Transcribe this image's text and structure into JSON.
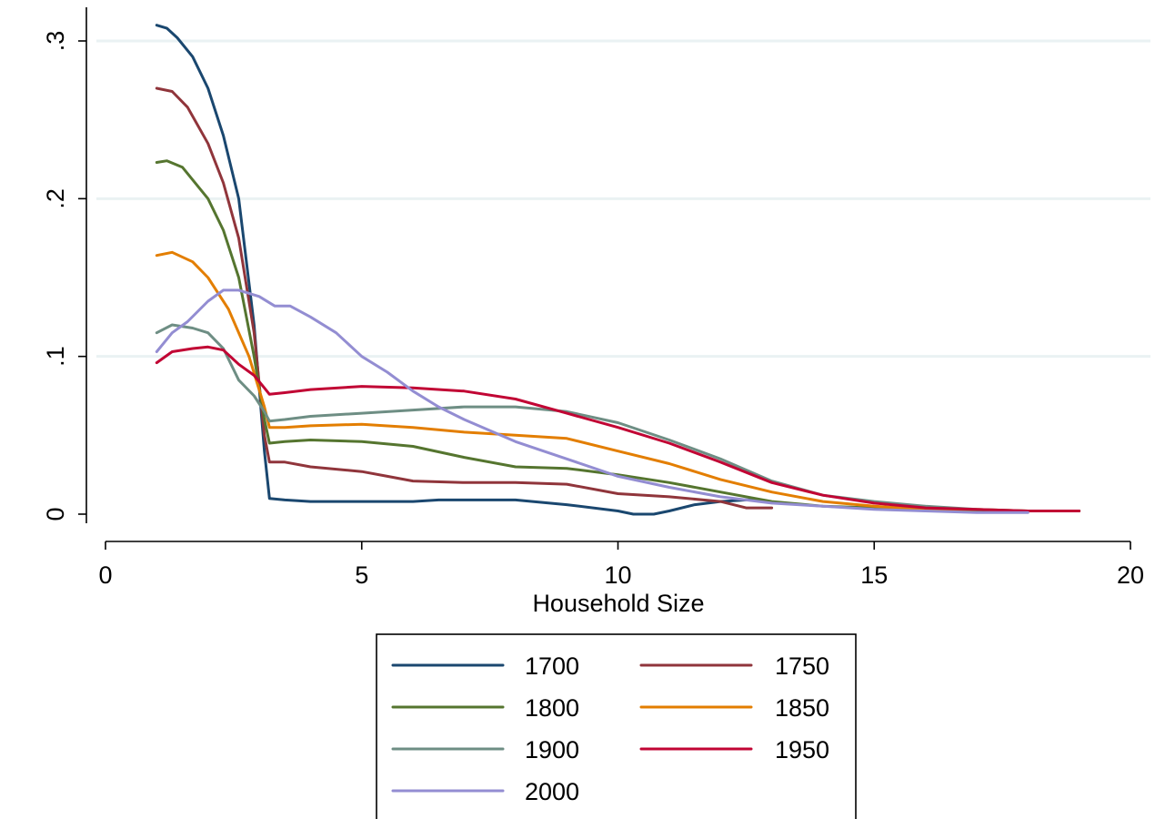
{
  "chart_data": {
    "type": "line",
    "title": "",
    "xlabel": "Household Size",
    "ylabel": "",
    "xlim": [
      0,
      20
    ],
    "ylim": [
      0,
      0.3
    ],
    "x_ticks": [
      {
        "value": 0,
        "label": "0"
      },
      {
        "value": 5,
        "label": "5"
      },
      {
        "value": 10,
        "label": "10"
      },
      {
        "value": 15,
        "label": "15"
      },
      {
        "value": 20,
        "label": "20"
      }
    ],
    "y_ticks": [
      {
        "value": 0,
        "label": "0"
      },
      {
        "value": 0.1,
        "label": ".1"
      },
      {
        "value": 0.2,
        "label": ".2"
      },
      {
        "value": 0.3,
        "label": ".3"
      }
    ],
    "grid": "horizontal",
    "legend": "bottom",
    "series": [
      {
        "name": "1700",
        "color": "#1a476f",
        "points": [
          [
            1,
            0.31
          ],
          [
            1.2,
            0.308
          ],
          [
            1.4,
            0.302
          ],
          [
            1.7,
            0.29
          ],
          [
            2,
            0.27
          ],
          [
            2.3,
            0.24
          ],
          [
            2.6,
            0.2
          ],
          [
            2.9,
            0.12
          ],
          [
            3.1,
            0.04
          ],
          [
            3.2,
            0.01
          ],
          [
            3.5,
            0.009
          ],
          [
            4,
            0.008
          ],
          [
            5,
            0.008
          ],
          [
            6,
            0.008
          ],
          [
            6.5,
            0.009
          ],
          [
            7,
            0.009
          ],
          [
            8,
            0.009
          ],
          [
            9,
            0.006
          ],
          [
            10,
            0.002
          ],
          [
            10.3,
            0.0
          ],
          [
            10.7,
            0.0
          ],
          [
            11,
            0.002
          ],
          [
            11.5,
            0.006
          ],
          [
            12,
            0.008
          ],
          [
            12.5,
            0.009
          ],
          [
            12.8,
            0.009
          ]
        ]
      },
      {
        "name": "1750",
        "color": "#90353b",
        "points": [
          [
            1,
            0.27
          ],
          [
            1.3,
            0.268
          ],
          [
            1.6,
            0.258
          ],
          [
            2,
            0.235
          ],
          [
            2.3,
            0.21
          ],
          [
            2.6,
            0.175
          ],
          [
            2.9,
            0.115
          ],
          [
            3.1,
            0.05
          ],
          [
            3.2,
            0.033
          ],
          [
            3.5,
            0.033
          ],
          [
            4,
            0.03
          ],
          [
            5,
            0.027
          ],
          [
            5.5,
            0.024
          ],
          [
            6,
            0.021
          ],
          [
            7,
            0.02
          ],
          [
            8,
            0.02
          ],
          [
            9,
            0.019
          ],
          [
            10,
            0.013
          ],
          [
            11,
            0.011
          ],
          [
            12,
            0.008
          ],
          [
            12.5,
            0.004
          ],
          [
            13,
            0.004
          ]
        ]
      },
      {
        "name": "1800",
        "color": "#55752f",
        "points": [
          [
            1,
            0.223
          ],
          [
            1.2,
            0.224
          ],
          [
            1.5,
            0.22
          ],
          [
            2,
            0.2
          ],
          [
            2.3,
            0.18
          ],
          [
            2.6,
            0.15
          ],
          [
            2.9,
            0.1
          ],
          [
            3.1,
            0.06
          ],
          [
            3.2,
            0.045
          ],
          [
            3.5,
            0.046
          ],
          [
            4,
            0.047
          ],
          [
            5,
            0.046
          ],
          [
            6,
            0.043
          ],
          [
            7,
            0.036
          ],
          [
            8,
            0.03
          ],
          [
            9,
            0.029
          ],
          [
            10,
            0.025
          ],
          [
            11,
            0.02
          ],
          [
            12,
            0.014
          ],
          [
            13,
            0.008
          ],
          [
            14,
            0.005
          ],
          [
            15,
            0.004
          ],
          [
            16,
            0.003
          ],
          [
            17,
            0.002
          ],
          [
            18,
            0.002
          ],
          [
            19,
            0.002
          ]
        ]
      },
      {
        "name": "1850",
        "color": "#e37e00",
        "points": [
          [
            1,
            0.164
          ],
          [
            1.3,
            0.166
          ],
          [
            1.7,
            0.16
          ],
          [
            2,
            0.15
          ],
          [
            2.4,
            0.13
          ],
          [
            2.8,
            0.1
          ],
          [
            3.1,
            0.068
          ],
          [
            3.2,
            0.055
          ],
          [
            3.5,
            0.055
          ],
          [
            4,
            0.056
          ],
          [
            5,
            0.057
          ],
          [
            6,
            0.055
          ],
          [
            7,
            0.052
          ],
          [
            8,
            0.05
          ],
          [
            9,
            0.048
          ],
          [
            10,
            0.04
          ],
          [
            11,
            0.032
          ],
          [
            12,
            0.022
          ],
          [
            13,
            0.014
          ],
          [
            14,
            0.008
          ],
          [
            15,
            0.005
          ],
          [
            16,
            0.003
          ],
          [
            17,
            0.003
          ],
          [
            18,
            0.002
          ],
          [
            19,
            0.002
          ]
        ]
      },
      {
        "name": "1900",
        "color": "#6e8e84",
        "points": [
          [
            1,
            0.115
          ],
          [
            1.3,
            0.12
          ],
          [
            1.7,
            0.118
          ],
          [
            2,
            0.115
          ],
          [
            2.3,
            0.105
          ],
          [
            2.6,
            0.085
          ],
          [
            2.9,
            0.075
          ],
          [
            3.1,
            0.065
          ],
          [
            3.2,
            0.059
          ],
          [
            3.5,
            0.06
          ],
          [
            4,
            0.062
          ],
          [
            5,
            0.064
          ],
          [
            6,
            0.066
          ],
          [
            7,
            0.068
          ],
          [
            8,
            0.068
          ],
          [
            9,
            0.065
          ],
          [
            10,
            0.058
          ],
          [
            11,
            0.047
          ],
          [
            12,
            0.035
          ],
          [
            13,
            0.021
          ],
          [
            14,
            0.012
          ],
          [
            15,
            0.008
          ],
          [
            16,
            0.005
          ],
          [
            17,
            0.003
          ],
          [
            18,
            0.002
          ],
          [
            19,
            0.002
          ]
        ]
      },
      {
        "name": "1950",
        "color": "#c10534",
        "points": [
          [
            1,
            0.096
          ],
          [
            1.3,
            0.103
          ],
          [
            1.7,
            0.105
          ],
          [
            2,
            0.106
          ],
          [
            2.3,
            0.104
          ],
          [
            2.6,
            0.095
          ],
          [
            2.9,
            0.088
          ],
          [
            3.1,
            0.08
          ],
          [
            3.2,
            0.076
          ],
          [
            3.5,
            0.077
          ],
          [
            4,
            0.079
          ],
          [
            5,
            0.081
          ],
          [
            6,
            0.08
          ],
          [
            7,
            0.078
          ],
          [
            8,
            0.073
          ],
          [
            9,
            0.064
          ],
          [
            10,
            0.055
          ],
          [
            11,
            0.045
          ],
          [
            12,
            0.033
          ],
          [
            13,
            0.02
          ],
          [
            14,
            0.012
          ],
          [
            15,
            0.007
          ],
          [
            16,
            0.004
          ],
          [
            17,
            0.003
          ],
          [
            18,
            0.002
          ],
          [
            19,
            0.002
          ]
        ]
      },
      {
        "name": "2000",
        "color": "#938dd2",
        "points": [
          [
            1,
            0.103
          ],
          [
            1.3,
            0.115
          ],
          [
            1.6,
            0.122
          ],
          [
            2,
            0.135
          ],
          [
            2.3,
            0.142
          ],
          [
            2.6,
            0.142
          ],
          [
            3,
            0.138
          ],
          [
            3.3,
            0.132
          ],
          [
            3.6,
            0.132
          ],
          [
            4,
            0.125
          ],
          [
            4.5,
            0.115
          ],
          [
            5,
            0.1
          ],
          [
            5.5,
            0.09
          ],
          [
            6,
            0.078
          ],
          [
            6.5,
            0.068
          ],
          [
            7,
            0.06
          ],
          [
            7.5,
            0.053
          ],
          [
            8,
            0.046
          ],
          [
            9,
            0.035
          ],
          [
            10,
            0.024
          ],
          [
            11,
            0.017
          ],
          [
            12,
            0.011
          ],
          [
            13,
            0.007
          ],
          [
            14,
            0.005
          ],
          [
            15,
            0.003
          ],
          [
            16,
            0.002
          ],
          [
            17,
            0.001
          ],
          [
            18,
            0.001
          ]
        ]
      }
    ]
  }
}
